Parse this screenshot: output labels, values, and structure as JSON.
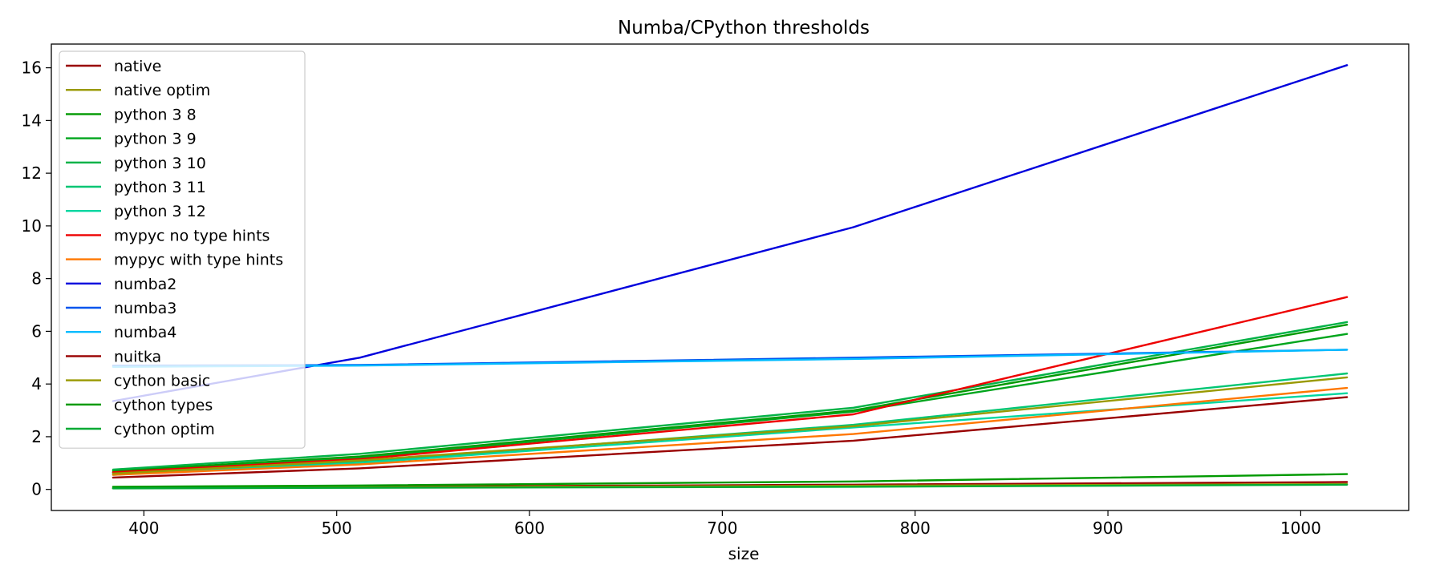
{
  "chart_data": {
    "type": "line",
    "title": "Numba/CPython thresholds",
    "xlabel": "size",
    "ylabel": "",
    "xlim": [
      352,
      1056
    ],
    "ylim": [
      -0.8,
      16.9
    ],
    "xticks": [
      400,
      500,
      600,
      700,
      800,
      900,
      1000
    ],
    "yticks": [
      0,
      2,
      4,
      6,
      8,
      10,
      12,
      14,
      16
    ],
    "grid": false,
    "legend_position": "upper-left",
    "x": [
      384,
      512,
      768,
      1024
    ],
    "series": [
      {
        "name": "native",
        "color": "#990000",
        "values": [
          0.05,
          0.1,
          0.18,
          0.28
        ]
      },
      {
        "name": "native optim",
        "color": "#999900",
        "values": [
          0.05,
          0.08,
          0.14,
          0.2
        ]
      },
      {
        "name": "python 3 8",
        "color": "#009900",
        "values": [
          0.7,
          1.25,
          3.0,
          6.25
        ]
      },
      {
        "name": "python 3 9",
        "color": "#00a51c",
        "values": [
          0.65,
          1.2,
          2.95,
          5.9
        ]
      },
      {
        "name": "python 3 10",
        "color": "#00b246",
        "values": [
          0.75,
          1.35,
          3.1,
          6.35
        ]
      },
      {
        "name": "python 3 11",
        "color": "#00c673",
        "values": [
          0.6,
          1.05,
          2.45,
          4.4
        ]
      },
      {
        "name": "python 3 12",
        "color": "#00d6a0",
        "values": [
          0.55,
          1.0,
          2.35,
          3.65
        ]
      },
      {
        "name": "mypyc no type hints",
        "color": "#ee0000",
        "values": [
          0.65,
          1.15,
          2.85,
          7.3
        ]
      },
      {
        "name": "mypyc with type hints",
        "color": "#ff7700",
        "values": [
          0.55,
          0.95,
          2.1,
          3.85
        ]
      },
      {
        "name": "numba2",
        "color": "#0000dd",
        "values": [
          3.35,
          5.0,
          9.95,
          16.1
        ]
      },
      {
        "name": "numba3",
        "color": "#0055ee",
        "values": [
          4.7,
          4.72,
          5.0,
          5.3
        ]
      },
      {
        "name": "numba4",
        "color": "#00bbff",
        "values": [
          4.65,
          4.7,
          4.95,
          5.3
        ]
      },
      {
        "name": "nuitka",
        "color": "#990000",
        "values": [
          0.45,
          0.8,
          1.85,
          3.5
        ]
      },
      {
        "name": "cython basic",
        "color": "#999900",
        "values": [
          0.6,
          1.1,
          2.4,
          4.25
        ]
      },
      {
        "name": "cython types",
        "color": "#009900",
        "values": [
          0.1,
          0.15,
          0.3,
          0.58
        ]
      },
      {
        "name": "cython optim",
        "color": "#00aa33",
        "values": [
          0.04,
          0.06,
          0.1,
          0.18
        ]
      }
    ]
  }
}
